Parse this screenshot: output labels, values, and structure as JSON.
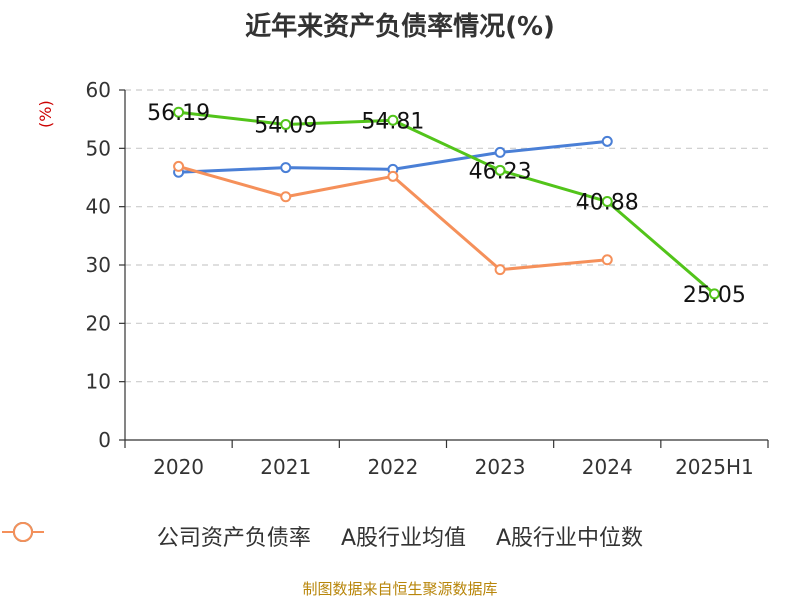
{
  "chart_data": {
    "type": "line",
    "title": "近年来资产负债率情况(%)",
    "ylabel": "(%)",
    "xlabel": "",
    "categories": [
      "2020",
      "2021",
      "2022",
      "2023",
      "2024",
      "2025H1"
    ],
    "ylim": [
      0,
      60
    ],
    "yticks": [
      0,
      10,
      20,
      30,
      40,
      50,
      60
    ],
    "grid": true,
    "legend_position": "bottom",
    "series": [
      {
        "name": "公司资产负债率",
        "color": "#52c41a",
        "values": [
          56.19,
          54.09,
          54.81,
          46.23,
          40.88,
          25.05
        ],
        "labels": [
          "56.19",
          "54.09",
          "54.81",
          "46.23",
          "40.88",
          "25.05"
        ]
      },
      {
        "name": "A股行业均值",
        "color": "#4a7fd6",
        "values": [
          45.9,
          46.7,
          46.4,
          49.3,
          51.2,
          null
        ]
      },
      {
        "name": "A股行业中位数",
        "color": "#f5905a",
        "values": [
          46.9,
          41.7,
          45.2,
          29.2,
          30.9,
          null
        ]
      }
    ],
    "source": "制图数据来自恒生聚源数据库"
  }
}
